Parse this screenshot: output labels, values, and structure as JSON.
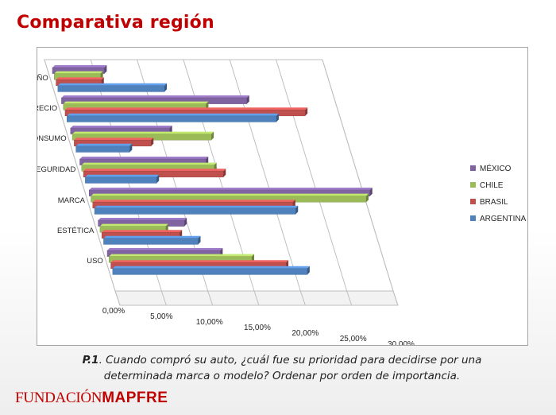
{
  "slide": {
    "title": "Comparativa región",
    "caption_q": "P.1",
    "caption_rest": ". Cuando compró su auto, ¿cuál fue su prioridad para decidirse por una determinada marca o modelo? Ordenar por orden de importancia.",
    "logo_fundacion": "FUNDACIÓN",
    "logo_mapfre": "MAPFRE",
    "brand_color": "#c00000"
  },
  "chart_data": {
    "type": "bar",
    "orientation": "horizontal",
    "categories": [
      "TAMAÑO",
      "PRECIO",
      "CONSUMO",
      "SEGURIDAD",
      "MARCA",
      "ESTÉTICA",
      "USO"
    ],
    "series": [
      {
        "name": "MÉXICO",
        "color": "#8064a2",
        "values": [
          0.056,
          0.2,
          0.107,
          0.136,
          0.303,
          0.093,
          0.122
        ]
      },
      {
        "name": "CHILE",
        "color": "#9bbb59",
        "values": [
          0.05,
          0.154,
          0.15,
          0.143,
          0.297,
          0.071,
          0.154
        ]
      },
      {
        "name": "BRASIL",
        "color": "#c0504d",
        "values": [
          0.049,
          0.259,
          0.083,
          0.151,
          0.216,
          0.084,
          0.189
        ]
      },
      {
        "name": "ARGENTINA",
        "color": "#4f81bd",
        "values": [
          0.115,
          0.226,
          0.058,
          0.077,
          0.217,
          0.102,
          0.21
        ]
      }
    ],
    "xlim": [
      0,
      0.3
    ],
    "x_ticks": [
      "0,00%",
      "5,00%",
      "10,00%",
      "15,00%",
      "20,00%",
      "25,00%",
      "30,00%"
    ],
    "legend_order": [
      "MÉXICO",
      "CHILE",
      "BRASIL",
      "ARGENTINA"
    ],
    "legend_position": "right",
    "grid": true,
    "style": "3d"
  }
}
